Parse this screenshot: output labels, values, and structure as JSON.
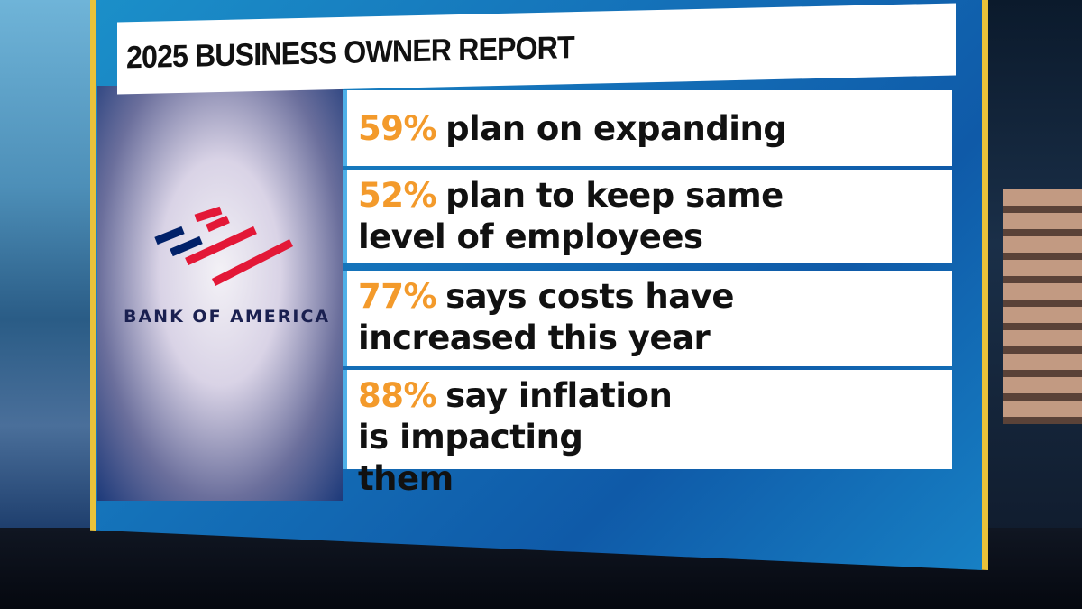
{
  "graphic": {
    "title": "2025 BUSINESS OWNER REPORT",
    "logo_text": "BANK OF AMERICA",
    "items": [
      {
        "percent": "59%",
        "text": "plan on expanding"
      },
      {
        "percent": "52%",
        "text": "plan to keep same level of employees"
      },
      {
        "percent": "77%",
        "text": "says costs have increased this year"
      },
      {
        "percent": "88%",
        "text": "say inflation is impacting them"
      }
    ]
  },
  "colors": {
    "accent": "#f39a2b",
    "frame": "#e9c23a",
    "panel": "#1470b8",
    "logo_red": "#e31837",
    "logo_navy": "#012169"
  }
}
